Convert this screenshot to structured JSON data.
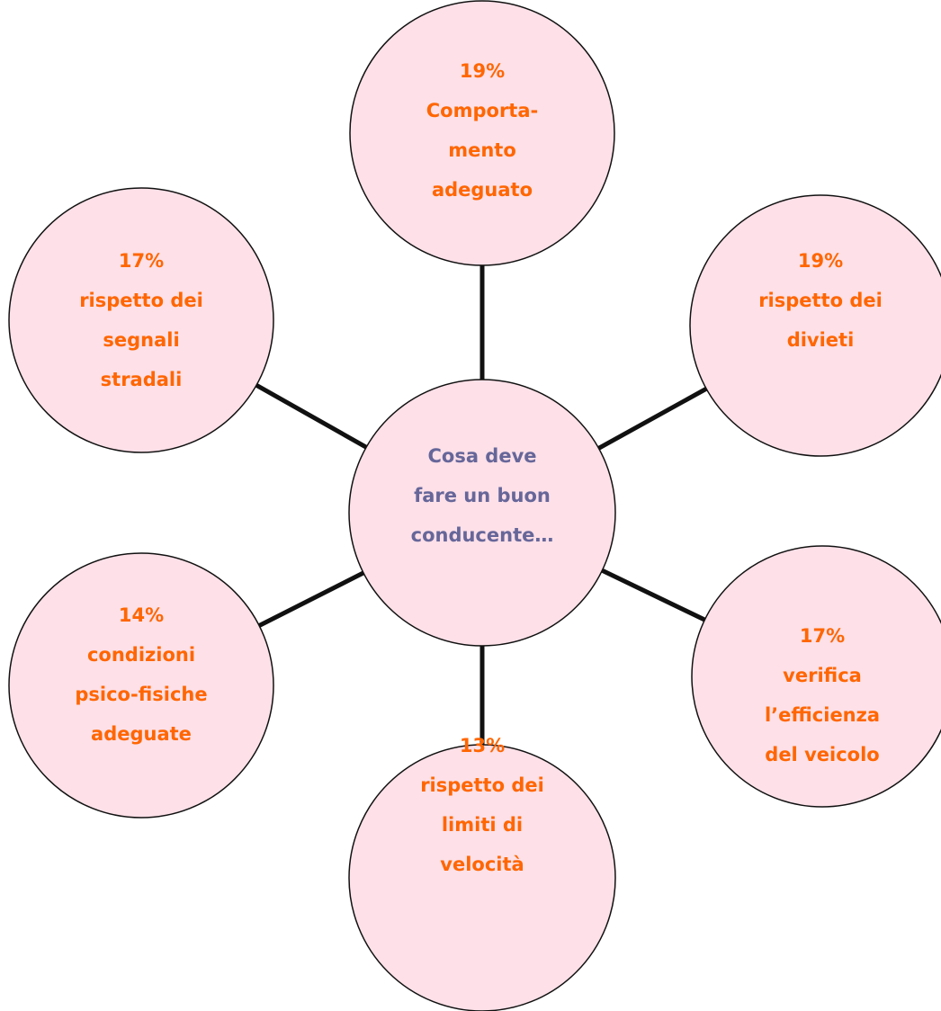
{
  "center": {
    "lines": [
      "Cosa deve",
      "fare un buon",
      "conducente…"
    ]
  },
  "nodes": [
    {
      "percent": "19%",
      "lines": [
        "Comporta-",
        "mento",
        "adeguato"
      ]
    },
    {
      "percent": "19%",
      "lines": [
        "rispetto dei",
        "divieti"
      ]
    },
    {
      "percent": "17%",
      "lines": [
        "verifica",
        "l’efficienza",
        "del veicolo"
      ]
    },
    {
      "percent": "13%",
      "lines": [
        "rispetto dei",
        "limiti di",
        "velocità"
      ]
    },
    {
      "percent": "14%",
      "lines": [
        "condizioni",
        "psico-fisiche",
        "adeguate"
      ]
    },
    {
      "percent": "17%",
      "lines": [
        "rispetto dei",
        "segnali",
        "stradali"
      ]
    }
  ]
}
